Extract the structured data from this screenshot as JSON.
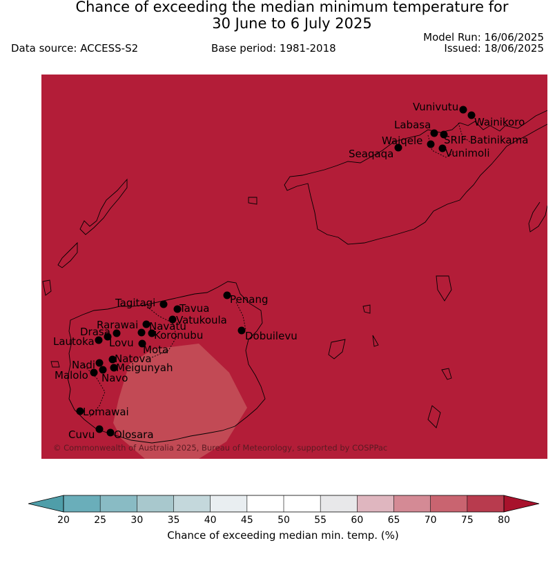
{
  "title_line1": "Chance of exceeding the median minimum temperature for",
  "title_line2": "30 June to 6 July 2025",
  "data_source": "Data source: ACCESS-S2",
  "base_period": "Base period: 1981-2018",
  "model_run": "Model Run: 16/06/2025",
  "issued": "Issued: 18/06/2025",
  "map": {
    "background_color": "#b31d38",
    "patch_color": "#c24a55",
    "patch_category": "65-70%",
    "background_category": "75-80%",
    "copyright": "© Commonwealth of Australia 2025, Bureau of Meteorology, supported by COSPPac"
  },
  "stations": [
    {
      "name": "Vunivutu"
    },
    {
      "name": "Wainikoro"
    },
    {
      "name": "Labasa"
    },
    {
      "name": "Waiqele"
    },
    {
      "name": "SRIF Batinikama"
    },
    {
      "name": "Seaqaqa"
    },
    {
      "name": "Vunimoli"
    },
    {
      "name": "Penang"
    },
    {
      "name": "Tagitagi"
    },
    {
      "name": "Tavua"
    },
    {
      "name": "Vatukoula"
    },
    {
      "name": "Rarawai"
    },
    {
      "name": "Navatu"
    },
    {
      "name": "Drasa"
    },
    {
      "name": "Koronubu"
    },
    {
      "name": "Dobuilevu"
    },
    {
      "name": "Lautoka"
    },
    {
      "name": "Lovu"
    },
    {
      "name": "Mota"
    },
    {
      "name": "Natova"
    },
    {
      "name": "Nadi"
    },
    {
      "name": "Meigunyah"
    },
    {
      "name": "Malolo"
    },
    {
      "name": "Navo"
    },
    {
      "name": "Lomawai"
    },
    {
      "name": "Cuvu"
    },
    {
      "name": "Olosara"
    }
  ],
  "colorbar": {
    "label": "Chance of exceeding median min. temp. (%)",
    "ticks": [
      "20",
      "25",
      "30",
      "35",
      "40",
      "45",
      "50",
      "55",
      "60",
      "65",
      "70",
      "75",
      "80"
    ],
    "under_color": "#4f9ea9",
    "over_color": "#a8122c",
    "colors": [
      "#6aaeba",
      "#89bbc4",
      "#a8c8cd",
      "#c4d8dc",
      "#e9eef1",
      "#ffffff",
      "#ffffff",
      "#e8e8ea",
      "#dfb6bf",
      "#d48a95",
      "#c96470",
      "#b83b4e"
    ]
  }
}
